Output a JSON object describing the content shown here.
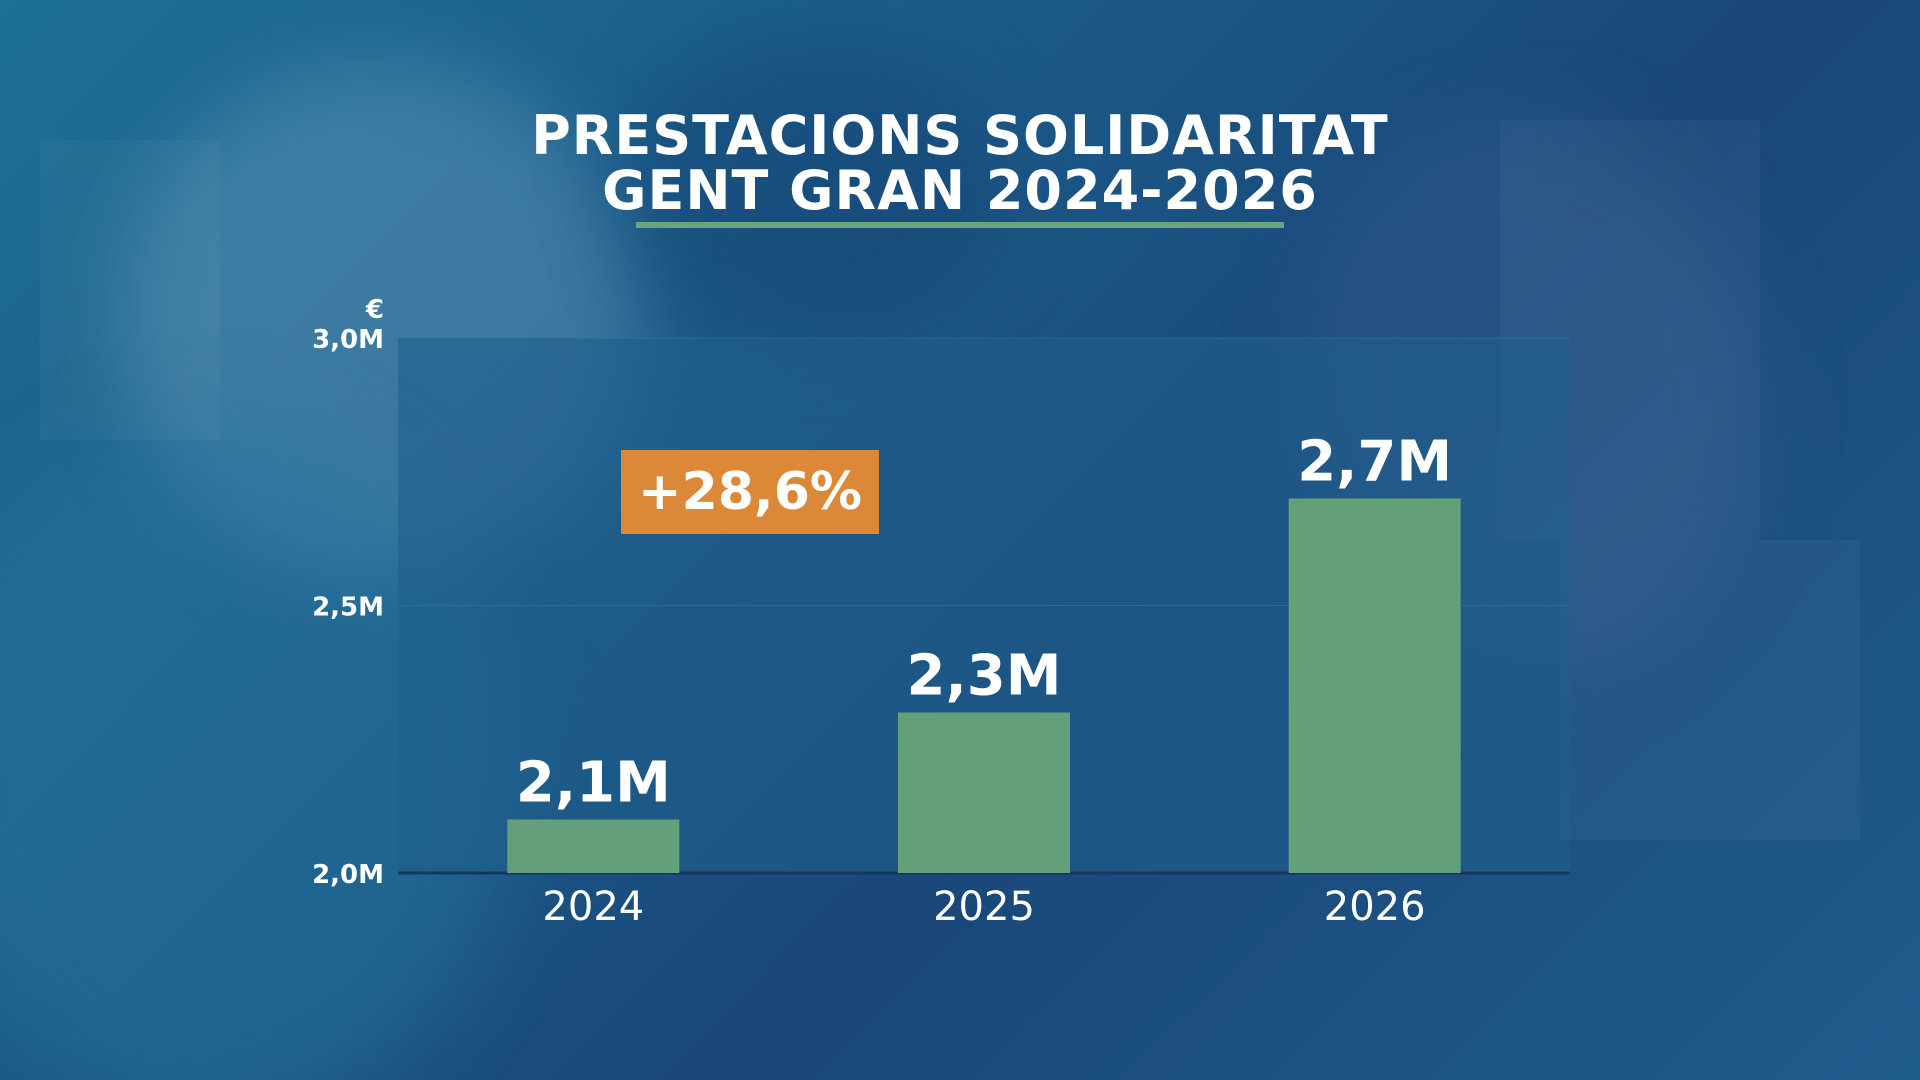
{
  "title_line1": "PRESTACIONS SOLIDARITAT",
  "title_line2": "GENT GRAN 2024-2026",
  "badge": "+28,6%",
  "colors": {
    "bar": "#63a07a",
    "badge": "#db8938",
    "plot_bg": "#1f5f8c"
  },
  "chart_data": {
    "type": "bar",
    "title": "PRESTACIONS SOLIDARITAT GENT GRAN 2024-2026",
    "unit": "€",
    "categories": [
      "2024",
      "2025",
      "2026"
    ],
    "values": [
      2.1,
      2.3,
      2.7
    ],
    "value_labels": [
      "2,1M",
      "2,3M",
      "2,7M"
    ],
    "ylim": [
      2.0,
      3.0
    ],
    "yticks": [
      2.0,
      2.5,
      3.0
    ],
    "ytick_labels": [
      "2,0M",
      "2,5M",
      "3,0M"
    ],
    "annotation": "+28,6%",
    "grid": true,
    "legend": "none"
  }
}
